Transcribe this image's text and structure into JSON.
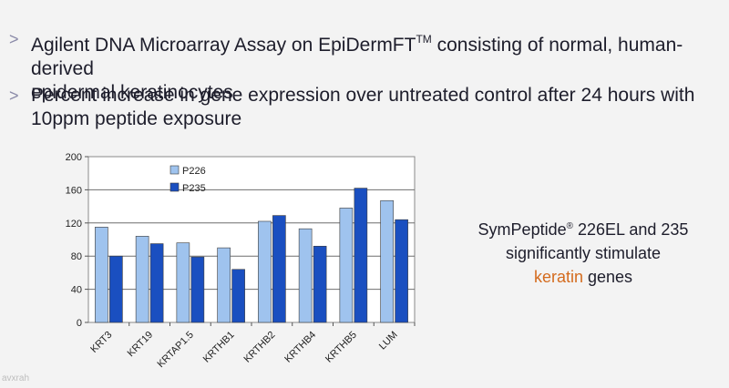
{
  "bullets": [
    {
      "arrow": ">",
      "line1": "Agilent DNA Microarray Assay on EpiDermFT",
      "tm": "TM",
      "line1_end": " consisting of normal, human-derived",
      "line2": "epidermal keratinocytes"
    },
    {
      "arrow": ">",
      "line1": "Percent increase in gene expression over untreated control after 24 hours with",
      "line2": "10ppm peptide exposure"
    }
  ],
  "side_text": {
    "brand": "SymPeptide",
    "reg": "®",
    "line1_end": " 226EL and 235",
    "line2": "significantly stimulate",
    "highlight": "keratin",
    "line3_end": " genes"
  },
  "watermark": "avxrah",
  "colors": {
    "P226": "#9fc3ee",
    "P235": "#1a4fc0",
    "plot_bg": "#ffffff",
    "highlight": "#d46b1e"
  },
  "chart_data": {
    "type": "bar",
    "categories": [
      "KRT3",
      "KRT19",
      "KRTAP1.5",
      "KRTHB1",
      "KRTHB2",
      "KRTHB4",
      "KRTHB5",
      "LUM"
    ],
    "series": [
      {
        "name": "P226",
        "values": [
          115,
          104,
          96,
          90,
          122,
          113,
          138,
          147
        ]
      },
      {
        "name": "P235",
        "values": [
          80,
          95,
          79,
          64,
          129,
          92,
          162,
          124
        ]
      }
    ],
    "ylim": [
      0,
      200
    ],
    "yticks": [
      0,
      40,
      80,
      120,
      160,
      200
    ],
    "grid": true,
    "legend": "top-left inside plot"
  }
}
